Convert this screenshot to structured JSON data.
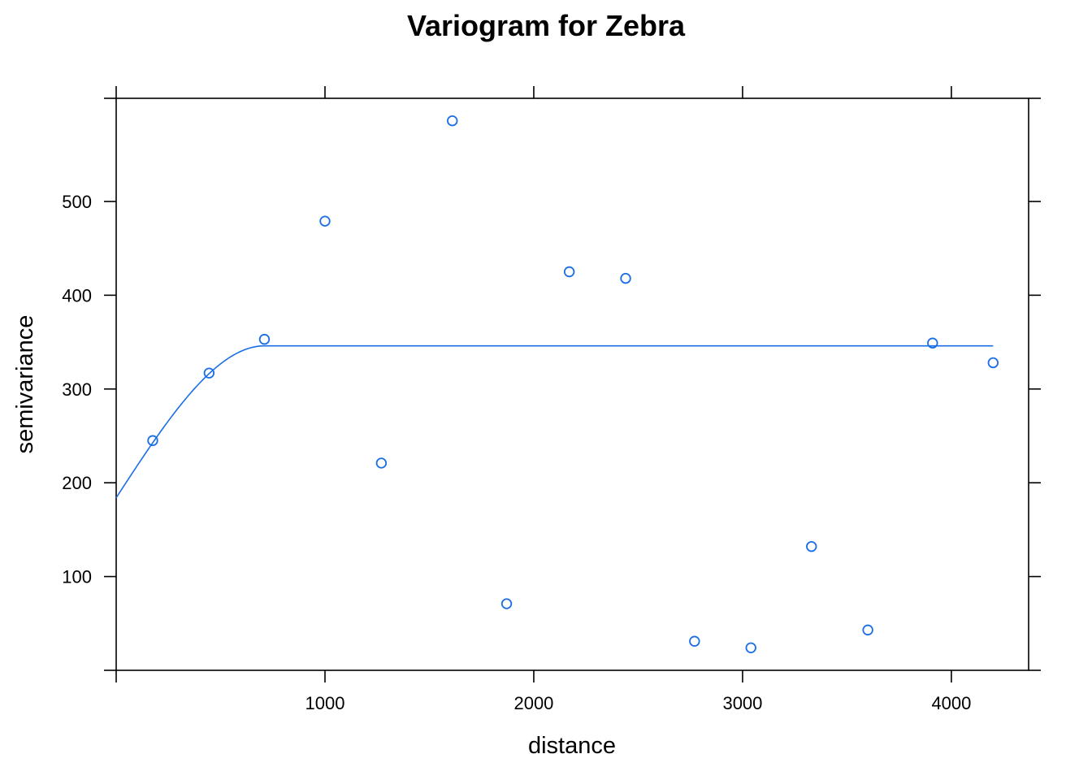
{
  "chart_data": {
    "type": "scatter",
    "title": "Variogram for Zebra",
    "xlabel": "distance",
    "ylabel": "semivariance",
    "xlim": [
      0,
      4370
    ],
    "ylim": [
      0,
      610
    ],
    "x_ticks": [
      1000,
      2000,
      3000,
      4000
    ],
    "x_tick_labels": [
      "1000",
      "2000",
      "3000",
      "4000"
    ],
    "y_ticks": [
      100,
      200,
      300,
      400,
      500
    ],
    "y_tick_labels": [
      "100",
      "200",
      "300",
      "400",
      "500"
    ],
    "grid": false,
    "colors": {
      "series": "#1a6ee6",
      "axis": "#000000"
    },
    "series": [
      {
        "kind": "points",
        "x": [
          175,
          445,
          710,
          1000,
          1270,
          1610,
          1870,
          2170,
          2440,
          2770,
          3040,
          3330,
          3600,
          3910,
          4200
        ],
        "y": [
          245,
          317,
          353,
          479,
          221,
          586,
          71,
          425,
          418,
          31,
          24,
          132,
          43,
          349,
          328
        ]
      },
      {
        "kind": "fitted-model",
        "model": "spherical",
        "nugget": 184,
        "sill": 346,
        "range": 710,
        "x_extent": [
          0,
          4200
        ]
      }
    ]
  }
}
